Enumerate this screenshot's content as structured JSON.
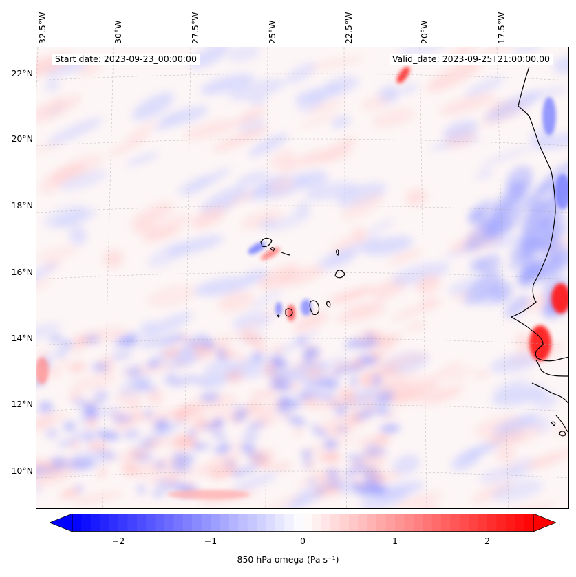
{
  "annotations": {
    "start_date": "Start date: 2023-09-23_00:00:00",
    "valid_date": "Valid_date: 2023-09-25T21:00:00.00"
  },
  "lat_labels": [
    "22°N",
    "20°N",
    "18°N",
    "16°N",
    "14°N",
    "12°N",
    "10°N"
  ],
  "lon_labels": [
    "32.5°W",
    "30°W",
    "27.5°W",
    "25°W",
    "22.5°W",
    "20°W",
    "17.5°W"
  ],
  "colorbar": {
    "label": "850 hPa omega (Pa s⁻¹)",
    "ticks": [
      "−2",
      "−1",
      "0",
      "1",
      "2"
    ],
    "tick_values": [
      -2,
      -1,
      0,
      1,
      2
    ],
    "range": [
      -2.5,
      2.5
    ],
    "extend": "both",
    "colormap": "bwr",
    "low_color": "#0000ff",
    "mid_color": "#ffffff",
    "high_color": "#ff0000"
  },
  "map": {
    "projection": "lambert-conformal",
    "lat_range": [
      9,
      22.5
    ],
    "lon_range": [
      -32.5,
      -16
    ],
    "gridlines": true,
    "coastlines": [
      "West Africa coast",
      "Cape Verde islands"
    ]
  }
}
